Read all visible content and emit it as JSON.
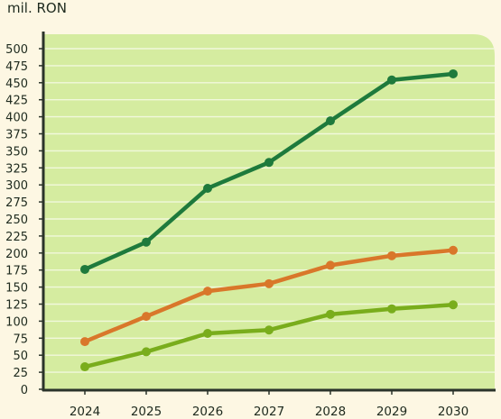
{
  "chart_data": {
    "type": "line",
    "unit_label": "mil. RON",
    "categories": [
      "2024",
      "2025",
      "2026",
      "2027",
      "2028",
      "2029",
      "2030"
    ],
    "ylim": [
      0,
      500
    ],
    "yticks": [
      0,
      25,
      50,
      75,
      100,
      125,
      150,
      175,
      200,
      225,
      250,
      275,
      300,
      325,
      350,
      375,
      400,
      425,
      450,
      475,
      500
    ],
    "grid": true,
    "series": [
      {
        "color": "#1e7a3c",
        "values": [
          176,
          216,
          295,
          333,
          394,
          454,
          463
        ]
      },
      {
        "color": "#d9772a",
        "values": [
          70,
          107,
          144,
          155,
          182,
          196,
          204
        ]
      },
      {
        "color": "#79ad1c",
        "values": [
          33,
          55,
          82,
          87,
          110,
          118,
          124
        ]
      }
    ],
    "plot_background": "#d5eca0",
    "page_background": "#fdf7e3",
    "grid_color": "#f1f8dc",
    "axis_color": "#2a332a"
  }
}
